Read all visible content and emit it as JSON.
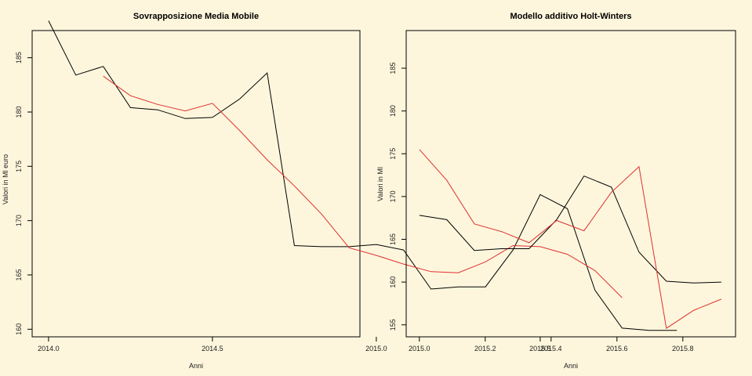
{
  "background": "#fdf6dc",
  "chart_data": [
    {
      "type": "line",
      "title": "Sovrapposizione Media Mobile",
      "xlabel": "Anni",
      "ylabel": "Valori in Ml euro",
      "xlim": [
        1963.95,
        1964.95
      ],
      "ylim": [
        159.3,
        187.5
      ],
      "xticks": [
        2014.0,
        2014.5,
        2015.0,
        2015.5
      ],
      "xtick_labels": [
        "2014.0",
        "2014.5",
        "2015.0",
        "2015.5"
      ],
      "yticks": [
        160,
        165,
        170,
        175,
        180,
        185
      ],
      "series": [
        {
          "color": "#000000",
          "x": [
            2014.0,
            2014.083,
            2014.167,
            2014.25,
            2014.333,
            2014.417,
            2014.5,
            2014.583,
            2014.667,
            2014.75,
            2014.833,
            2014.917,
            2015.0,
            2015.083,
            2015.167,
            2015.25,
            2015.333,
            2015.417,
            2015.5,
            2015.583,
            2015.667,
            2015.75,
            2015.833,
            2015.917
          ],
          "y": [
            188.4,
            183.4,
            184.2,
            180.4,
            180.2,
            179.4,
            179.5,
            181.2,
            183.6,
            167.7,
            167.6,
            167.6,
            167.8,
            167.3,
            163.7,
            163.9,
            163.9,
            167.3,
            172.4,
            171.1,
            163.6,
            160.1,
            159.9,
            159.9
          ]
        },
        {
          "color": "#e03030",
          "x": [
            2014.167,
            2014.25,
            2014.333,
            2014.417,
            2014.5,
            2014.583,
            2014.667,
            2014.75,
            2014.833,
            2014.917,
            2015.0,
            2015.083,
            2015.167,
            2015.25,
            2015.333,
            2015.417,
            2015.5,
            2015.583,
            2015.667,
            2015.75
          ],
          "y": [
            183.3,
            181.5,
            180.7,
            180.1,
            180.8,
            178.3,
            175.6,
            173.2,
            170.6,
            167.5,
            166.8,
            166.0,
            165.3,
            165.2,
            166.2,
            167.7,
            167.6,
            166.9,
            165.4,
            162.9
          ]
        }
      ]
    },
    {
      "type": "line",
      "title": "Modello additivo Holt-Winters",
      "xlabel": "Anni",
      "ylabel": "Valori in Ml",
      "xlim": [
        2014.96,
        2015.96
      ],
      "ylim": [
        153.6,
        189.4
      ],
      "xticks": [
        2015.0,
        2015.2,
        2015.4,
        2015.6,
        2015.8
      ],
      "xtick_labels": [
        "2015.0",
        "2015.2",
        "2015.4",
        "2015.6",
        "2015.8"
      ],
      "yticks": [
        155,
        160,
        165,
        170,
        175,
        180,
        185
      ],
      "series": [
        {
          "color": "#000000",
          "x": [
            2015.0,
            2015.083,
            2015.167,
            2015.25,
            2015.333,
            2015.417,
            2015.5,
            2015.583,
            2015.667,
            2015.75,
            2015.833,
            2015.917
          ],
          "y": [
            167.8,
            167.3,
            163.7,
            163.9,
            163.9,
            167.3,
            172.4,
            171.1,
            163.5,
            160.1,
            159.9,
            160.0
          ]
        },
        {
          "color": "#e03030",
          "x": [
            2015.0,
            2015.083,
            2015.167,
            2015.25,
            2015.333,
            2015.417,
            2015.5,
            2015.583,
            2015.667,
            2015.75,
            2015.833,
            2015.917
          ],
          "y": [
            175.5,
            171.9,
            166.8,
            165.9,
            164.6,
            167.2,
            166.0,
            170.5,
            173.5,
            154.6,
            156.7,
            158.0
          ]
        }
      ]
    }
  ]
}
